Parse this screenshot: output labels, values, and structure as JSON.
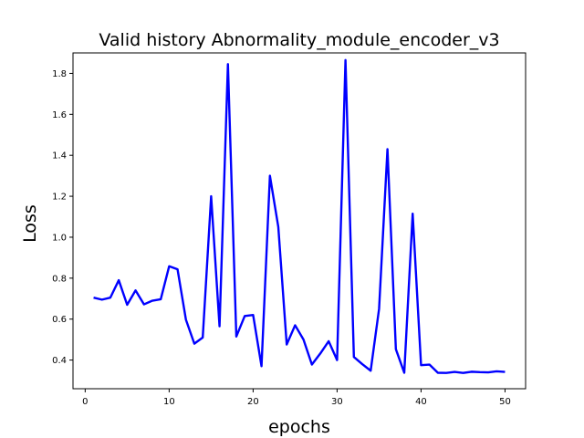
{
  "chart_data": {
    "type": "line",
    "title": "Valid history Abnormality_module_encoder_v3",
    "xlabel": "epochs",
    "ylabel": "Loss",
    "xlim": [
      -1.45,
      52.45
    ],
    "ylim": [
      0.26,
      1.9
    ],
    "x_ticks": [
      0,
      10,
      20,
      30,
      40,
      50
    ],
    "y_ticks": [
      0.4,
      0.6,
      0.8,
      1.0,
      1.2,
      1.4,
      1.6,
      1.8
    ],
    "x_tick_labels": [
      "0",
      "10",
      "20",
      "30",
      "40",
      "50"
    ],
    "y_tick_labels": [
      "0.4",
      "0.6",
      "0.8",
      "1.0",
      "1.2",
      "1.4",
      "1.6",
      "1.8"
    ],
    "grid": false,
    "series": [
      {
        "color": "#0000ff",
        "x": [
          1,
          2,
          3,
          4,
          5,
          6,
          7,
          8,
          9,
          10,
          11,
          12,
          13,
          14,
          15,
          16,
          17,
          18,
          19,
          20,
          21,
          22,
          23,
          24,
          25,
          26,
          27,
          28,
          29,
          30,
          31,
          32,
          33,
          34,
          35,
          36,
          37,
          38,
          39,
          40,
          41,
          42,
          43,
          44,
          45,
          46,
          47,
          48,
          49,
          50
        ],
        "y": [
          0.705,
          0.695,
          0.705,
          0.79,
          0.67,
          0.74,
          0.672,
          0.69,
          0.697,
          0.858,
          0.843,
          0.597,
          0.48,
          0.51,
          1.2,
          0.565,
          1.845,
          0.515,
          0.615,
          0.62,
          0.37,
          1.3,
          1.05,
          0.476,
          0.57,
          0.5,
          0.378,
          0.432,
          0.492,
          0.4,
          1.865,
          0.415,
          0.38,
          0.348,
          0.65,
          1.43,
          0.453,
          0.338,
          1.115,
          0.375,
          0.378,
          0.338,
          0.337,
          0.342,
          0.337,
          0.343,
          0.341,
          0.34,
          0.345,
          0.342
        ]
      }
    ]
  }
}
